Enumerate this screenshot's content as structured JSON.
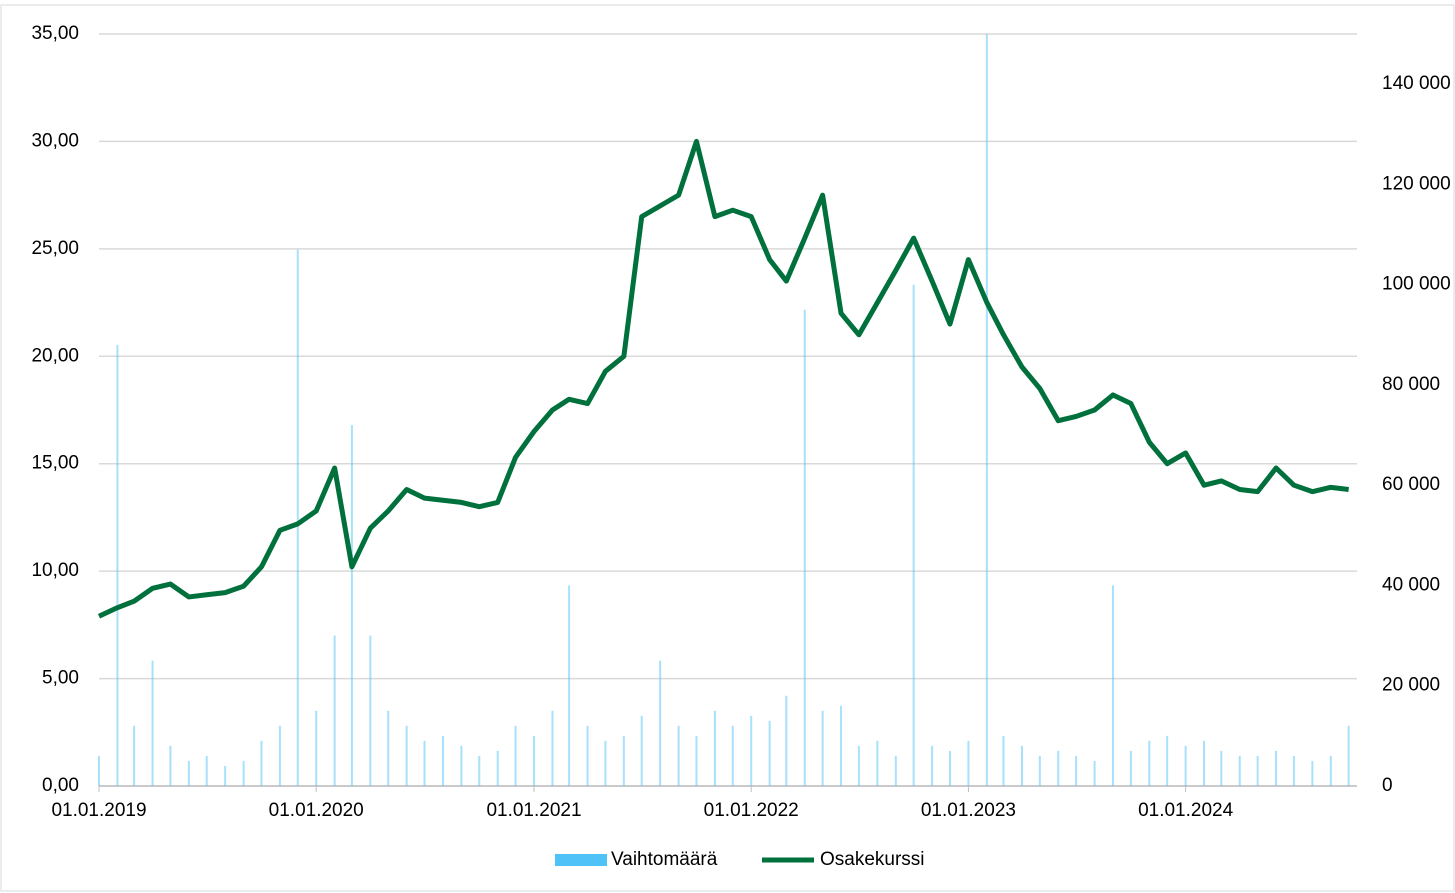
{
  "chart_data": {
    "type": "line",
    "x": [
      "01.01.2019",
      "01.02.2019",
      "01.03.2019",
      "01.04.2019",
      "01.05.2019",
      "01.06.2019",
      "01.07.2019",
      "01.08.2019",
      "01.09.2019",
      "01.10.2019",
      "01.11.2019",
      "01.12.2019",
      "01.01.2020",
      "01.02.2020",
      "01.03.2020",
      "01.04.2020",
      "01.05.2020",
      "01.06.2020",
      "01.07.2020",
      "01.08.2020",
      "01.09.2020",
      "01.10.2020",
      "01.11.2020",
      "01.12.2020",
      "01.01.2021",
      "01.02.2021",
      "01.03.2021",
      "01.04.2021",
      "01.05.2021",
      "01.06.2021",
      "01.07.2021",
      "01.08.2021",
      "01.09.2021",
      "01.10.2021",
      "01.11.2021",
      "01.12.2021",
      "01.01.2022",
      "01.02.2022",
      "01.03.2022",
      "01.04.2022",
      "01.05.2022",
      "01.06.2022",
      "01.07.2022",
      "01.08.2022",
      "01.09.2022",
      "01.10.2022",
      "01.11.2022",
      "01.12.2022",
      "01.01.2023",
      "01.02.2023",
      "01.03.2023",
      "01.04.2023",
      "01.05.2023",
      "01.06.2023",
      "01.07.2023",
      "01.08.2023",
      "01.09.2023",
      "01.10.2023",
      "01.11.2023",
      "01.12.2023",
      "01.01.2024",
      "01.02.2024",
      "01.03.2024",
      "01.04.2024",
      "01.05.2024",
      "01.06.2024",
      "01.07.2024",
      "01.08.2024",
      "01.09.2024",
      "01.10.2024"
    ],
    "series": [
      {
        "name": "Vaihtomäärä",
        "type": "bar",
        "axis": "y2",
        "color": "#4fc3f7",
        "values": [
          6000,
          88000,
          12000,
          25000,
          8000,
          5000,
          6000,
          4000,
          5000,
          9000,
          12000,
          107000,
          15000,
          30000,
          72000,
          30000,
          15000,
          12000,
          9000,
          10000,
          8000,
          6000,
          7000,
          12000,
          10000,
          15000,
          40000,
          12000,
          9000,
          10000,
          14000,
          25000,
          12000,
          10000,
          15000,
          12000,
          14000,
          13000,
          18000,
          95000,
          15000,
          16000,
          8000,
          9000,
          6000,
          100000,
          8000,
          7000,
          9000,
          150000,
          10000,
          8000,
          6000,
          7000,
          6000,
          5000,
          40000,
          7000,
          9000,
          10000,
          8000,
          9000,
          7000,
          6000,
          6000,
          7000,
          6000,
          5000,
          6000,
          12000
        ]
      },
      {
        "name": "Osakekurssi",
        "type": "line",
        "color": "#00703c",
        "values": [
          7.9,
          8.3,
          8.6,
          9.2,
          9.4,
          8.8,
          8.9,
          9.0,
          9.3,
          10.2,
          11.9,
          12.2,
          12.8,
          14.8,
          10.2,
          12.0,
          12.8,
          13.8,
          13.4,
          13.3,
          13.2,
          13.0,
          13.2,
          15.3,
          16.5,
          17.5,
          18.0,
          17.8,
          19.3,
          20.0,
          26.5,
          27.0,
          27.5,
          30.0,
          26.5,
          26.8,
          26.5,
          24.5,
          23.5,
          25.5,
          27.5,
          22.0,
          21.0,
          22.5,
          24.0,
          25.5,
          23.5,
          21.5,
          24.5,
          22.5,
          21.0,
          19.5,
          18.5,
          17.0,
          17.2,
          17.5,
          18.2,
          17.8,
          16.0,
          15.0,
          15.5,
          14.0,
          14.2,
          13.8,
          13.7,
          14.8,
          14.0,
          13.7,
          13.9,
          13.8
        ]
      }
    ],
    "xlim": [
      "01.01.2019",
      "15.10.2024"
    ],
    "xticks": [
      "01.01.2019",
      "01.01.2020",
      "01.01.2021",
      "01.01.2022",
      "01.01.2023",
      "01.01.2024"
    ],
    "ylim": [
      0,
      35
    ],
    "yticks": [
      {
        "value": 0,
        "label": "0,00"
      },
      {
        "value": 5,
        "label": "5,00"
      },
      {
        "value": 10,
        "label": "10,00"
      },
      {
        "value": 15,
        "label": "15,00"
      },
      {
        "value": 20,
        "label": "20,00"
      },
      {
        "value": 25,
        "label": "25,00"
      },
      {
        "value": 30,
        "label": "30,00"
      },
      {
        "value": 35,
        "label": "35,00"
      }
    ],
    "y2lim": [
      0,
      150000
    ],
    "y2ticks": [
      0,
      {
        "value": 20000,
        "label": "20 000"
      },
      {
        "value": 40000,
        "label": "40 000"
      },
      {
        "value": 60000,
        "label": "60 000"
      },
      {
        "value": 80000,
        "label": "80 000"
      },
      {
        "value": 100000,
        "label": "100 000"
      },
      {
        "value": 120000,
        "label": "120 000"
      },
      {
        "value": 140000,
        "label": "140 000"
      }
    ],
    "grid": true,
    "legend": "bottom"
  }
}
